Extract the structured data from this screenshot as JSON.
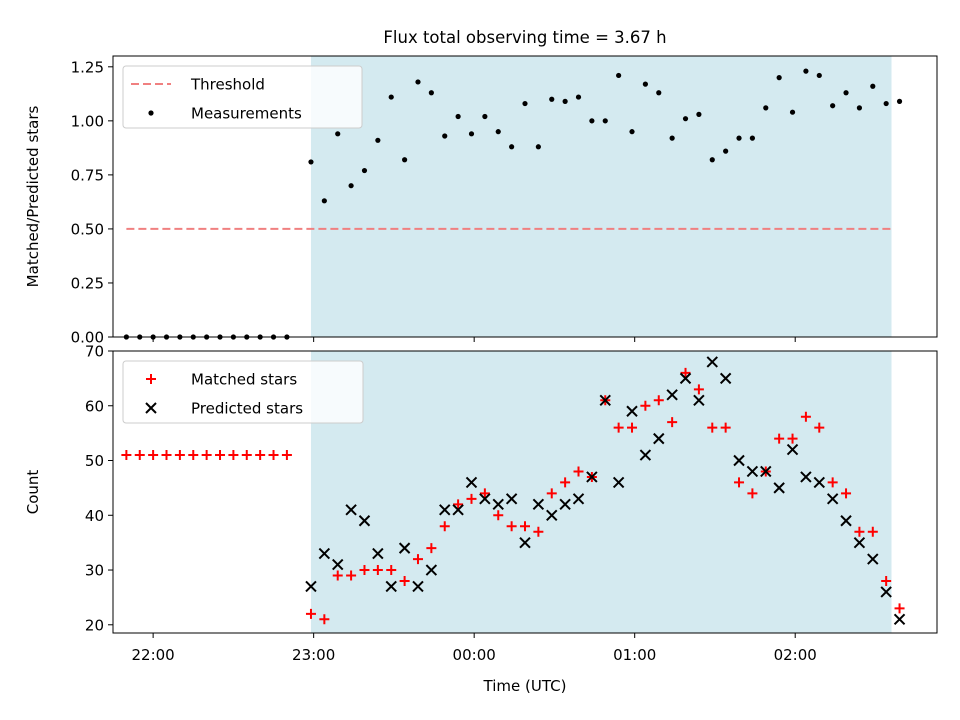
{
  "figure": {
    "title": "Flux total observing time = 3.67 h"
  },
  "colors": {
    "shade": "#d4eaf0",
    "threshold": "#f08080",
    "measurement": "#000000",
    "matched": "#ff0000",
    "predicted": "#000000"
  },
  "chart_data": [
    {
      "type": "scatter",
      "ylabel": "Matched/Predicted stars",
      "xlabel": "",
      "xlim": [
        "21:45",
        "02:53"
      ],
      "ylim": [
        0,
        1.3
      ],
      "yticks": [
        0,
        0.25,
        0.5,
        0.75,
        1.0,
        1.25
      ],
      "ytick_labels": [
        "0.00",
        "0.25",
        "0.50",
        "0.75",
        "1.00",
        "1.25"
      ],
      "xticks": [
        "22:00",
        "23:00",
        "00:00",
        "01:00",
        "02:00"
      ],
      "observing_window": [
        "22:59",
        "02:36"
      ],
      "legend": {
        "position": "upper-left",
        "entries": [
          "Threshold",
          "Measurements"
        ]
      },
      "threshold": {
        "name": "Threshold",
        "value": 0.5,
        "x_range": [
          "21:50",
          "02:36"
        ],
        "style": "dashed"
      },
      "series": [
        {
          "name": "Measurements",
          "points": [
            [
              "21:50",
              0
            ],
            [
              "21:55",
              0
            ],
            [
              "22:00",
              0
            ],
            [
              "22:05",
              0
            ],
            [
              "22:10",
              0
            ],
            [
              "22:15",
              0
            ],
            [
              "22:20",
              0
            ],
            [
              "22:25",
              0
            ],
            [
              "22:30",
              0
            ],
            [
              "22:35",
              0
            ],
            [
              "22:40",
              0
            ],
            [
              "22:45",
              0
            ],
            [
              "22:50",
              0
            ],
            [
              "22:59",
              0.81
            ],
            [
              "23:04",
              0.63
            ],
            [
              "23:09",
              0.94
            ],
            [
              "23:14",
              0.7
            ],
            [
              "23:19",
              0.77
            ],
            [
              "23:24",
              0.91
            ],
            [
              "23:29",
              1.11
            ],
            [
              "23:34",
              0.82
            ],
            [
              "23:39",
              1.18
            ],
            [
              "23:44",
              1.13
            ],
            [
              "23:49",
              0.93
            ],
            [
              "23:54",
              1.02
            ],
            [
              "23:59",
              0.94
            ],
            [
              "00:04",
              1.02
            ],
            [
              "00:09",
              0.95
            ],
            [
              "00:14",
              0.88
            ],
            [
              "00:19",
              1.08
            ],
            [
              "00:24",
              0.88
            ],
            [
              "00:29",
              1.1
            ],
            [
              "00:34",
              1.09
            ],
            [
              "00:39",
              1.11
            ],
            [
              "00:44",
              1.0
            ],
            [
              "00:49",
              1.0
            ],
            [
              "00:54",
              1.21
            ],
            [
              "00:59",
              0.95
            ],
            [
              "01:04",
              1.17
            ],
            [
              "01:09",
              1.13
            ],
            [
              "01:14",
              0.92
            ],
            [
              "01:19",
              1.01
            ],
            [
              "01:24",
              1.03
            ],
            [
              "01:29",
              0.82
            ],
            [
              "01:34",
              0.86
            ],
            [
              "01:39",
              0.92
            ],
            [
              "01:44",
              0.92
            ],
            [
              "01:49",
              1.06
            ],
            [
              "01:54",
              1.2
            ],
            [
              "01:59",
              1.04
            ],
            [
              "02:04",
              1.23
            ],
            [
              "02:09",
              1.21
            ],
            [
              "02:14",
              1.07
            ],
            [
              "02:19",
              1.13
            ],
            [
              "02:24",
              1.06
            ],
            [
              "02:29",
              1.16
            ],
            [
              "02:34",
              1.08
            ],
            [
              "02:39",
              1.09
            ]
          ]
        }
      ]
    },
    {
      "type": "scatter",
      "ylabel": "Count",
      "xlabel": "Time (UTC)",
      "xlim": [
        "21:45",
        "02:53"
      ],
      "ylim": [
        18.5,
        70
      ],
      "yticks": [
        20,
        30,
        40,
        50,
        60,
        70
      ],
      "ytick_labels": [
        "20",
        "30",
        "40",
        "50",
        "60",
        "70"
      ],
      "xticks": [
        "22:00",
        "23:00",
        "00:00",
        "01:00",
        "02:00"
      ],
      "observing_window": [
        "22:59",
        "02:36"
      ],
      "legend": {
        "position": "upper-left",
        "entries": [
          "Matched stars",
          "Predicted stars"
        ]
      },
      "series": [
        {
          "name": "Matched stars",
          "marker": "+",
          "points": [
            [
              "21:50",
              51
            ],
            [
              "21:55",
              51
            ],
            [
              "22:00",
              51
            ],
            [
              "22:05",
              51
            ],
            [
              "22:10",
              51
            ],
            [
              "22:15",
              51
            ],
            [
              "22:20",
              51
            ],
            [
              "22:25",
              51
            ],
            [
              "22:30",
              51
            ],
            [
              "22:35",
              51
            ],
            [
              "22:40",
              51
            ],
            [
              "22:45",
              51
            ],
            [
              "22:50",
              51
            ],
            [
              "22:59",
              22
            ],
            [
              "23:04",
              21
            ],
            [
              "23:09",
              29
            ],
            [
              "23:14",
              29
            ],
            [
              "23:19",
              30
            ],
            [
              "23:24",
              30
            ],
            [
              "23:29",
              30
            ],
            [
              "23:34",
              28
            ],
            [
              "23:39",
              32
            ],
            [
              "23:44",
              34
            ],
            [
              "23:49",
              38
            ],
            [
              "23:54",
              42
            ],
            [
              "23:59",
              43
            ],
            [
              "00:04",
              44
            ],
            [
              "00:09",
              40
            ],
            [
              "00:14",
              38
            ],
            [
              "00:19",
              38
            ],
            [
              "00:24",
              37
            ],
            [
              "00:29",
              44
            ],
            [
              "00:34",
              46
            ],
            [
              "00:39",
              48
            ],
            [
              "00:44",
              47
            ],
            [
              "00:49",
              61
            ],
            [
              "00:54",
              56
            ],
            [
              "00:59",
              56
            ],
            [
              "01:04",
              60
            ],
            [
              "01:09",
              61
            ],
            [
              "01:14",
              57
            ],
            [
              "01:19",
              66
            ],
            [
              "01:24",
              63
            ],
            [
              "01:29",
              56
            ],
            [
              "01:34",
              56
            ],
            [
              "01:39",
              46
            ],
            [
              "01:44",
              44
            ],
            [
              "01:49",
              48
            ],
            [
              "01:54",
              54
            ],
            [
              "01:59",
              54
            ],
            [
              "02:04",
              58
            ],
            [
              "02:09",
              56
            ],
            [
              "02:14",
              46
            ],
            [
              "02:19",
              44
            ],
            [
              "02:24",
              37
            ],
            [
              "02:29",
              37
            ],
            [
              "02:34",
              28
            ],
            [
              "02:39",
              23
            ]
          ]
        },
        {
          "name": "Predicted stars",
          "marker": "x",
          "points": [
            [
              "22:59",
              27
            ],
            [
              "23:04",
              33
            ],
            [
              "23:09",
              31
            ],
            [
              "23:14",
              41
            ],
            [
              "23:19",
              39
            ],
            [
              "23:24",
              33
            ],
            [
              "23:29",
              27
            ],
            [
              "23:34",
              34
            ],
            [
              "23:39",
              27
            ],
            [
              "23:44",
              30
            ],
            [
              "23:49",
              41
            ],
            [
              "23:54",
              41
            ],
            [
              "23:59",
              46
            ],
            [
              "00:04",
              43
            ],
            [
              "00:09",
              42
            ],
            [
              "00:14",
              43
            ],
            [
              "00:19",
              35
            ],
            [
              "00:24",
              42
            ],
            [
              "00:29",
              40
            ],
            [
              "00:34",
              42
            ],
            [
              "00:39",
              43
            ],
            [
              "00:44",
              47
            ],
            [
              "00:49",
              61
            ],
            [
              "00:54",
              46
            ],
            [
              "00:59",
              59
            ],
            [
              "01:04",
              51
            ],
            [
              "01:09",
              54
            ],
            [
              "01:14",
              62
            ],
            [
              "01:19",
              65
            ],
            [
              "01:24",
              61
            ],
            [
              "01:29",
              68
            ],
            [
              "01:34",
              65
            ],
            [
              "01:39",
              50
            ],
            [
              "01:44",
              48
            ],
            [
              "01:49",
              48
            ],
            [
              "01:54",
              45
            ],
            [
              "01:59",
              52
            ],
            [
              "02:04",
              47
            ],
            [
              "02:09",
              46
            ],
            [
              "02:14",
              43
            ],
            [
              "02:19",
              39
            ],
            [
              "02:24",
              35
            ],
            [
              "02:29",
              32
            ],
            [
              "02:34",
              26
            ],
            [
              "02:39",
              21
            ]
          ]
        }
      ]
    }
  ]
}
